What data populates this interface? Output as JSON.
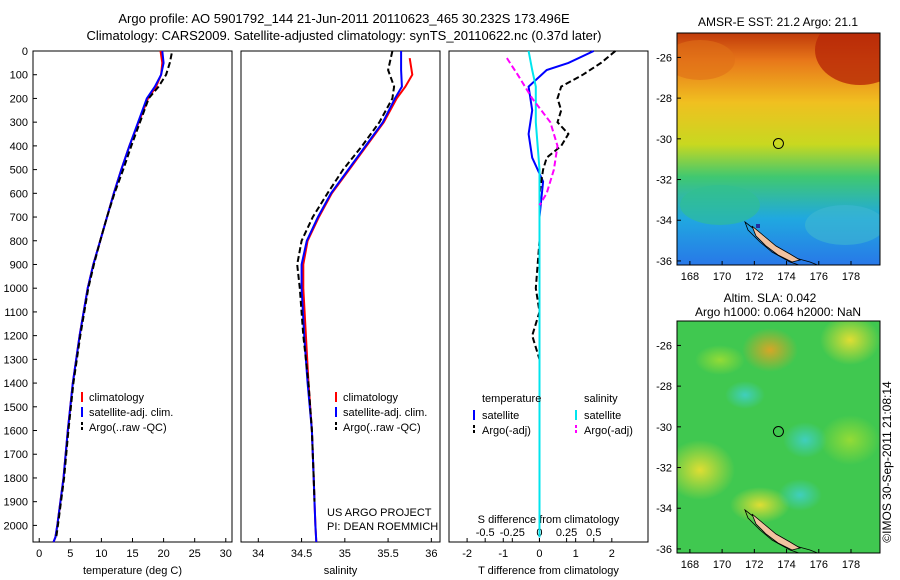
{
  "title": {
    "line1": "Argo profile: AO 5901792_144 21-Jun-2011 20110623_465 30.232S 173.496E",
    "line2": "Climatology: CARS2009. Satellite-adjusted climatology: synTS_20110622.nc (0.37d later)"
  },
  "credit": "US ARGO PROJECT\nPI: DEAN ROEMMICH",
  "watermark": "©IMOS 30-Sep-2011 21:08:14",
  "colors": {
    "climatology": "#ff0000",
    "satellite": "#0000ff",
    "argo": "#000000",
    "salinity_satellite": "#00e5ee",
    "salinity_argo": "#ff00ff"
  },
  "chart_data": [
    {
      "type": "line",
      "id": "temperature",
      "xlabel": "temperature (deg C)",
      "ylabel": "",
      "xlim": [
        -1,
        31
      ],
      "ylim": [
        2070,
        0
      ],
      "x_ticks": [
        0,
        5,
        10,
        15,
        20,
        25,
        30
      ],
      "y_ticks": [
        0,
        100,
        200,
        300,
        400,
        500,
        600,
        700,
        800,
        900,
        1000,
        1100,
        1200,
        1300,
        1400,
        1500,
        1600,
        1700,
        1800,
        1900,
        2000
      ],
      "legend": [
        {
          "label": "climatology",
          "color": "#ff0000",
          "dash": "solid"
        },
        {
          "label": "satellite-adj. clim.",
          "color": "#0000ff",
          "dash": "solid"
        },
        {
          "label": "Argo(..raw -QC)",
          "color": "#000000",
          "dash": "dashed"
        }
      ],
      "series": [
        {
          "name": "climatology",
          "color": "#ff0000",
          "dash": "solid",
          "x": [
            19.5,
            19.8,
            19.6,
            18.8,
            17.5,
            16.0,
            14.5,
            13.2,
            12.0,
            10.9,
            9.8,
            8.7,
            7.8,
            6.5,
            5.4,
            4.6,
            3.9,
            3.4,
            2.9,
            2.6,
            2.3
          ],
          "y": [
            0,
            50,
            100,
            150,
            200,
            300,
            400,
            500,
            600,
            700,
            800,
            900,
            1000,
            1200,
            1400,
            1600,
            1800,
            1900,
            2000,
            2050,
            2070
          ]
        },
        {
          "name": "satellite-adj. clim.",
          "color": "#0000ff",
          "dash": "solid",
          "x": [
            19.8,
            20.0,
            19.6,
            18.6,
            17.3,
            15.9,
            14.5,
            13.2,
            12.0,
            10.9,
            9.8,
            8.7,
            7.8,
            6.5,
            5.4,
            4.6,
            3.9,
            3.4,
            2.9,
            2.6,
            2.3
          ],
          "y": [
            0,
            50,
            100,
            150,
            200,
            300,
            400,
            500,
            600,
            700,
            800,
            900,
            1000,
            1200,
            1400,
            1600,
            1800,
            1900,
            2000,
            2050,
            2070
          ]
        },
        {
          "name": "Argo(..raw -QC)",
          "color": "#000000",
          "dash": "dashed",
          "x": [
            21.3,
            21.0,
            20.4,
            19.2,
            17.6,
            16.2,
            14.8,
            13.5,
            12.1,
            10.9,
            9.8,
            8.8,
            7.9,
            6.6,
            5.5,
            4.7,
            4.0,
            3.5,
            3.0,
            2.8,
            2.7
          ],
          "y": [
            10,
            50,
            100,
            150,
            200,
            300,
            400,
            500,
            600,
            700,
            800,
            900,
            1000,
            1200,
            1400,
            1600,
            1800,
            1900,
            2000,
            2040,
            2050
          ]
        }
      ]
    },
    {
      "type": "line",
      "id": "salinity",
      "xlabel": "salinity",
      "ylabel": "",
      "xlim": [
        33.8,
        36.1
      ],
      "ylim": [
        2070,
        0
      ],
      "x_ticks": [
        34,
        34.5,
        35,
        35.5,
        36
      ],
      "y_ticks": [],
      "legend": [
        {
          "label": "climatology",
          "color": "#ff0000",
          "dash": "solid"
        },
        {
          "label": "satellite-adj. clim.",
          "color": "#0000ff",
          "dash": "solid"
        },
        {
          "label": "Argo(..raw -QC)",
          "color": "#000000",
          "dash": "dashed"
        }
      ],
      "series": [
        {
          "name": "climatology",
          "color": "#ff0000",
          "dash": "solid",
          "x": [
            35.75,
            35.78,
            35.7,
            35.6,
            35.45,
            35.25,
            35.05,
            34.85,
            34.7,
            34.57,
            34.52,
            34.52,
            34.55,
            34.58,
            34.62,
            34.64,
            34.65,
            34.66,
            34.67
          ],
          "y": [
            30,
            100,
            150,
            200,
            300,
            400,
            500,
            600,
            700,
            800,
            900,
            1000,
            1200,
            1400,
            1600,
            1800,
            1900,
            2000,
            2070
          ]
        },
        {
          "name": "satellite-adj. clim.",
          "color": "#0000ff",
          "dash": "solid",
          "x": [
            35.65,
            35.65,
            35.66,
            35.58,
            35.44,
            35.24,
            35.04,
            34.84,
            34.69,
            34.56,
            34.5,
            34.5,
            34.53,
            34.57,
            34.62,
            34.64,
            34.65,
            34.66,
            34.67
          ],
          "y": [
            0,
            80,
            150,
            200,
            300,
            400,
            500,
            600,
            700,
            800,
            900,
            1000,
            1200,
            1400,
            1600,
            1800,
            1900,
            2000,
            2070
          ]
        },
        {
          "name": "Argo(..raw -QC)",
          "color": "#000000",
          "dash": "dashed",
          "x": [
            35.55,
            35.5,
            35.57,
            35.55,
            35.4,
            35.2,
            34.98,
            34.8,
            34.63,
            34.5,
            34.45,
            34.48,
            34.52,
            34.58,
            34.62,
            34.64,
            34.65
          ],
          "y": [
            0,
            80,
            150,
            200,
            300,
            400,
            500,
            600,
            700,
            800,
            900,
            1000,
            1200,
            1400,
            1600,
            1800,
            1900
          ]
        }
      ]
    },
    {
      "type": "line",
      "id": "difference",
      "xlabel": "T difference from climatology",
      "xlabel_top": "S difference from climatology",
      "ylabel": "",
      "xlim": [
        -2.5,
        3
      ],
      "ylim": [
        2070,
        0
      ],
      "x_ticks": [
        -2,
        -1,
        0,
        1,
        2
      ],
      "x_ticks_top": [
        {
          "x": -1.5,
          "label": "-0.5"
        },
        {
          "x": -0.75,
          "label": "-0.25"
        },
        {
          "x": 0,
          "label": "0"
        },
        {
          "x": 0.75,
          "label": "0.25"
        },
        {
          "x": 1.5,
          "label": "0.5"
        }
      ],
      "y_ticks": [],
      "legend_temperature_title": "temperature",
      "legend_salinity_title": "salinity",
      "legend": [
        {
          "label": "satellite",
          "color": "#0000ff",
          "dash": "solid"
        },
        {
          "label": "Argo(-adj)",
          "color": "#000000",
          "dash": "dashed"
        },
        {
          "label": "satellite",
          "color": "#00e5ee",
          "dash": "solid"
        },
        {
          "label": "Argo(-adj)",
          "color": "#ff00ff",
          "dash": "dashed"
        }
      ],
      "series": [
        {
          "name": "temperature satellite",
          "color": "#0000ff",
          "dash": "solid",
          "x": [
            1.5,
            0.8,
            0.2,
            -0.3,
            -0.2,
            -0.3,
            -0.2,
            0.1,
            0.0,
            0.0,
            0.0,
            0.0,
            0.0,
            0.0,
            0.0,
            0.0,
            0.0
          ],
          "y": [
            0,
            50,
            80,
            150,
            250,
            350,
            450,
            550,
            700,
            800,
            900,
            1000,
            1200,
            1400,
            1600,
            1800,
            2050
          ]
        },
        {
          "name": "temperature Argo(-adj)",
          "color": "#000000",
          "dash": "dashed",
          "x": [
            2.1,
            1.7,
            1.2,
            0.6,
            0.5,
            0.6,
            0.5,
            0.8,
            0.6,
            0.2,
            0.1,
            0.0,
            0.0,
            -0.1,
            0.0,
            -0.2,
            0.0,
            0.0
          ],
          "y": [
            0,
            50,
            100,
            150,
            200,
            250,
            300,
            350,
            400,
            450,
            500,
            600,
            800,
            1000,
            1100,
            1200,
            1300,
            1350
          ]
        },
        {
          "name": "salinity satellite",
          "color": "#00e5ee",
          "dash": "solid",
          "x": [
            -0.3,
            -0.2,
            -0.1,
            -0.1,
            0.0,
            0.0,
            0.0,
            0.0,
            0.0,
            0.0,
            0.0,
            0.0
          ],
          "y": [
            0,
            80,
            150,
            300,
            500,
            700,
            900,
            1100,
            1300,
            1500,
            1700,
            2050
          ]
        },
        {
          "name": "salinity Argo(-adj)",
          "color": "#ff00ff",
          "dash": "dashed",
          "x": [
            -0.9,
            -0.6,
            -0.2,
            0.3,
            0.5,
            0.4,
            0.2,
            0.0
          ],
          "y": [
            30,
            100,
            200,
            300,
            400,
            500,
            600,
            650
          ]
        }
      ]
    }
  ],
  "maps": [
    {
      "id": "sst",
      "title": "AMSR-E SST: 21.2  Argo: 21.1",
      "subtitle": "",
      "lon_ticks": [
        168,
        170,
        172,
        174,
        176,
        178
      ],
      "lat_ticks": [
        -26,
        -28,
        -30,
        -32,
        -34,
        -36
      ],
      "lon_range": [
        167.2,
        179.8
      ],
      "lat_range": [
        -36.2,
        -24.8
      ],
      "argo_position": {
        "lon": 173.496,
        "lat": -30.232
      }
    },
    {
      "id": "sla",
      "title": "Altim. SLA: 0.042",
      "subtitle": "Argo h1000: 0.064  h2000: NaN",
      "lon_ticks": [
        168,
        170,
        172,
        174,
        176,
        178
      ],
      "lat_ticks": [
        -26,
        -28,
        -30,
        -32,
        -34,
        -36
      ],
      "lon_range": [
        167.2,
        179.8
      ],
      "lat_range": [
        -36.2,
        -24.8
      ],
      "argo_position": {
        "lon": 173.496,
        "lat": -30.232
      }
    }
  ]
}
